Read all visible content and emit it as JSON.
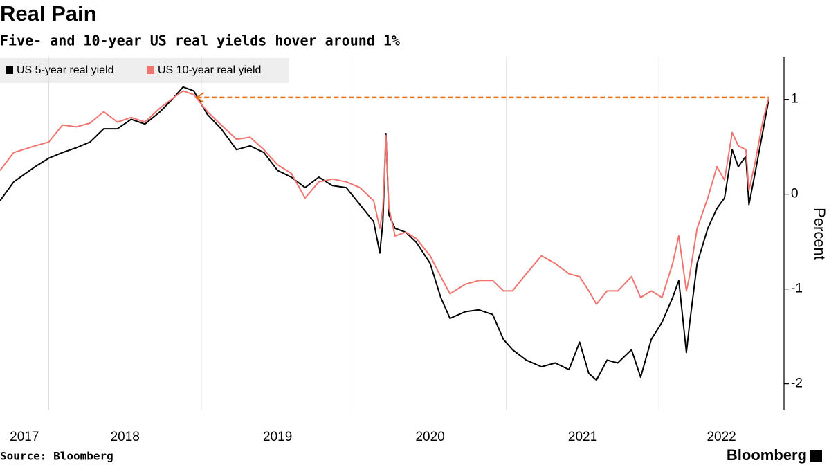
{
  "title": "Real Pain",
  "subtitle": "Five- and 10-year US real yields hover around 1%",
  "source": "Source: Bloomberg",
  "brand": "Bloomberg",
  "chart_data": {
    "type": "line",
    "y_label": "Percent",
    "xlim": [
      2017.68,
      2022.82
    ],
    "xticks": [
      2017,
      2018,
      2019,
      2020,
      2021,
      2022
    ],
    "ylim": [
      -2.28,
      1.45
    ],
    "yticks": [
      1,
      0,
      -1,
      -2
    ],
    "grid": true,
    "legend": "top-left",
    "reference_line": {
      "y": 1.02,
      "x": [
        2018.97,
        2022.72
      ],
      "color": "#e8731a"
    },
    "x": [
      2017.68,
      2017.77,
      2017.91,
      2018.0,
      2018.09,
      2018.18,
      2018.27,
      2018.36,
      2018.45,
      2018.54,
      2018.63,
      2018.73,
      2018.82,
      2018.88,
      2018.95,
      2019.0,
      2019.04,
      2019.13,
      2019.23,
      2019.32,
      2019.41,
      2019.5,
      2019.59,
      2019.68,
      2019.77,
      2019.86,
      2019.95,
      2020.04,
      2020.13,
      2020.17,
      2020.19,
      2020.21,
      2020.23,
      2020.27,
      2020.34,
      2020.41,
      2020.5,
      2020.57,
      2020.63,
      2020.73,
      2020.82,
      2020.91,
      2020.98,
      2021.04,
      2021.13,
      2021.23,
      2021.32,
      2021.41,
      2021.48,
      2021.54,
      2021.59,
      2021.66,
      2021.73,
      2021.82,
      2021.88,
      2021.95,
      2022.02,
      2022.09,
      2022.13,
      2022.18,
      2022.2,
      2022.25,
      2022.32,
      2022.38,
      2022.43,
      2022.48,
      2022.52,
      2022.57,
      2022.59,
      2022.63,
      2022.68,
      2022.72
    ],
    "series": [
      {
        "name": "US 5-year real yield",
        "color": "#000000",
        "values": [
          -0.07,
          0.13,
          0.29,
          0.38,
          0.44,
          0.49,
          0.55,
          0.69,
          0.69,
          0.79,
          0.74,
          0.87,
          1.02,
          1.13,
          1.09,
          0.95,
          0.84,
          0.69,
          0.47,
          0.51,
          0.44,
          0.25,
          0.18,
          0.07,
          0.18,
          0.09,
          0.07,
          -0.11,
          -0.29,
          -0.62,
          -0.29,
          0.64,
          -0.22,
          -0.36,
          -0.4,
          -0.51,
          -0.73,
          -1.09,
          -1.31,
          -1.24,
          -1.22,
          -1.27,
          -1.53,
          -1.64,
          -1.75,
          -1.82,
          -1.78,
          -1.85,
          -1.56,
          -1.89,
          -1.96,
          -1.75,
          -1.78,
          -1.64,
          -1.93,
          -1.53,
          -1.35,
          -1.09,
          -0.91,
          -1.67,
          -1.38,
          -0.73,
          -0.36,
          -0.15,
          -0.04,
          0.47,
          0.29,
          0.4,
          -0.11,
          0.22,
          0.65,
          1.0
        ]
      },
      {
        "name": "US 10-year real yield",
        "color": "#f07470",
        "values": [
          0.25,
          0.44,
          0.51,
          0.55,
          0.73,
          0.71,
          0.75,
          0.87,
          0.76,
          0.81,
          0.76,
          0.91,
          1.02,
          1.09,
          1.05,
          0.95,
          0.87,
          0.73,
          0.58,
          0.6,
          0.47,
          0.31,
          0.22,
          -0.04,
          0.13,
          0.16,
          0.13,
          0.07,
          -0.07,
          -0.36,
          -0.15,
          0.62,
          -0.15,
          -0.44,
          -0.4,
          -0.47,
          -0.65,
          -0.87,
          -1.05,
          -0.95,
          -0.91,
          -0.91,
          -1.02,
          -1.02,
          -0.84,
          -0.65,
          -0.73,
          -0.84,
          -0.87,
          -1.02,
          -1.16,
          -1.02,
          -1.02,
          -0.87,
          -1.09,
          -1.02,
          -1.09,
          -0.73,
          -0.44,
          -1.02,
          -0.87,
          -0.36,
          -0.04,
          0.29,
          0.15,
          0.65,
          0.51,
          0.47,
          0.04,
          0.33,
          0.76,
          1.02
        ]
      }
    ]
  }
}
